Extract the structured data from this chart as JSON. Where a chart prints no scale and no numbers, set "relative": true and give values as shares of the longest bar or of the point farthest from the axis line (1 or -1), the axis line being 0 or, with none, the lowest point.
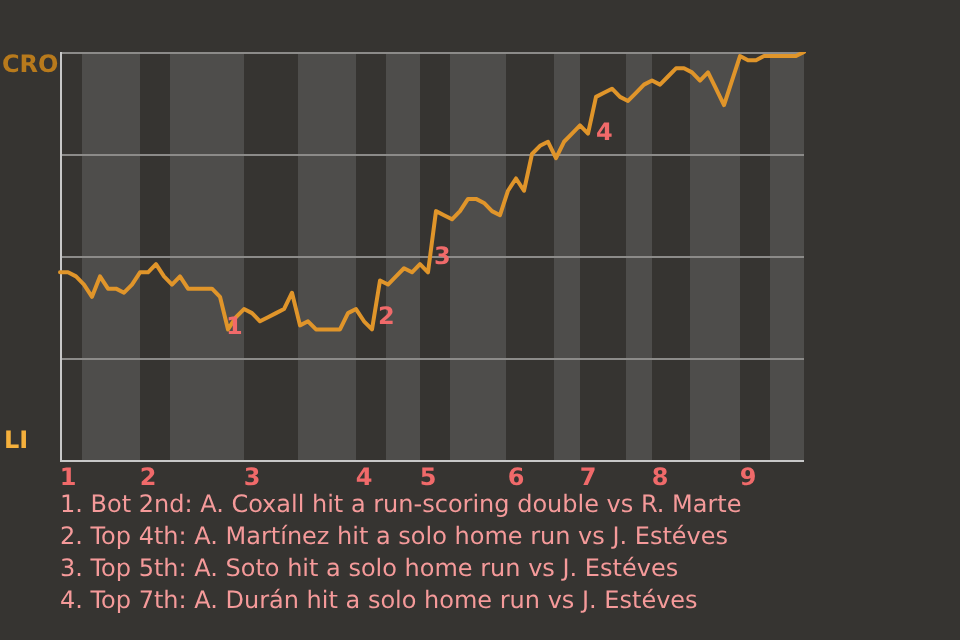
{
  "chart_data": {
    "type": "line",
    "relative": true,
    "categories": [
      null,
      "1",
      null,
      null,
      null,
      null,
      null,
      null,
      null,
      null,
      null,
      "2",
      null,
      null,
      null,
      null,
      null,
      null,
      null,
      null,
      null,
      null,
      null,
      null,
      "3",
      null,
      null,
      null,
      null,
      null,
      null,
      null,
      null,
      null,
      null,
      null,
      null,
      null,
      "4",
      null,
      null,
      null,
      null,
      null,
      null,
      null,
      "5",
      null,
      null,
      null,
      null,
      null,
      null,
      null,
      null,
      null,
      null,
      "6",
      null,
      null,
      null,
      null,
      null,
      null,
      null,
      null,
      "7",
      null,
      null,
      null,
      null,
      null,
      null,
      null,
      null,
      "8",
      null,
      null,
      null,
      null,
      null,
      null,
      null,
      null,
      null,
      null,
      "9",
      null,
      null,
      null,
      null,
      null,
      null,
      null
    ],
    "series": [
      {
        "color": "#e0952a",
        "values": [
          0.46,
          0.46,
          0.45,
          0.43,
          0.4,
          0.45,
          0.42,
          0.42,
          0.41,
          0.43,
          0.46,
          0.46,
          0.48,
          0.45,
          0.43,
          0.45,
          0.42,
          0.42,
          0.42,
          0.42,
          0.4,
          0.32,
          0.35,
          0.37,
          0.36,
          0.34,
          0.35,
          0.36,
          0.37,
          0.41,
          0.33,
          0.34,
          0.32,
          0.32,
          0.32,
          0.32,
          0.36,
          0.37,
          0.34,
          0.32,
          0.44,
          0.43,
          0.45,
          0.47,
          0.46,
          0.48,
          0.46,
          0.61,
          0.6,
          0.59,
          0.61,
          0.64,
          0.64,
          0.63,
          0.61,
          0.6,
          0.66,
          0.69,
          0.66,
          0.75,
          0.77,
          0.78,
          0.74,
          0.78,
          0.8,
          0.82,
          0.8,
          0.89,
          0.9,
          0.91,
          0.89,
          0.88,
          0.9,
          0.92,
          0.93,
          0.92,
          0.94,
          0.96,
          0.96,
          0.95,
          0.93,
          0.95,
          0.91,
          0.87,
          0.93,
          0.99,
          0.98,
          0.98,
          0.99,
          0.99,
          0.99,
          0.99,
          0.99,
          1
        ]
      }
    ],
    "grid": "y",
    "legend": false,
    "marker": "none",
    "line_style": "solid",
    "annotations": [
      "CRO",
      "LI",
      "1",
      "2",
      "3",
      "4",
      "1. Bot 2nd: A. Coxall hit a run-scoring double vs R. Marte",
      "2. Top 4th: A. Martínez hit a solo home run vs J. Estéves",
      "3. Top 5th: A. Soto hit a solo home run vs J. Estéves",
      "4. Top 7th: A. Durán hit a solo home run vs J. Estéves"
    ]
  }
}
